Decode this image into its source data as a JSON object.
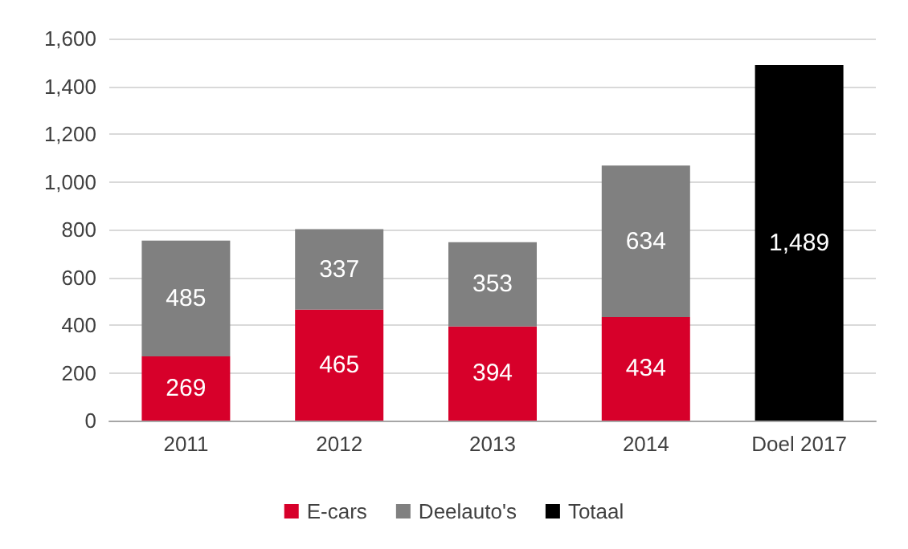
{
  "chart_data": {
    "type": "bar",
    "stacked": true,
    "categories": [
      "2011",
      "2012",
      "2013",
      "2014",
      "Doel 2017"
    ],
    "series": [
      {
        "name": "E-cars",
        "color": "#d7002a",
        "values": [
          269,
          465,
          394,
          434,
          null
        ],
        "value_labels": [
          "269",
          "465",
          "394",
          "434",
          null
        ]
      },
      {
        "name": "Deelauto's",
        "color": "#808080",
        "values": [
          485,
          337,
          353,
          634,
          null
        ],
        "value_labels": [
          "485",
          "337",
          "353",
          "634",
          null
        ]
      },
      {
        "name": "Totaal",
        "color": "#000000",
        "values": [
          null,
          null,
          null,
          null,
          1489
        ],
        "value_labels": [
          null,
          null,
          null,
          null,
          "1,489"
        ]
      }
    ],
    "ylim": [
      0,
      1600
    ],
    "yticks": [
      {
        "value": 0,
        "label": "0"
      },
      {
        "value": 200,
        "label": "200"
      },
      {
        "value": 400,
        "label": "400"
      },
      {
        "value": 600,
        "label": "600"
      },
      {
        "value": 800,
        "label": "800"
      },
      {
        "value": 1000,
        "label": "1,000"
      },
      {
        "value": 1200,
        "label": "1,200"
      },
      {
        "value": 1400,
        "label": "1,400"
      },
      {
        "value": 1600,
        "label": "1,600"
      }
    ],
    "grid": "y",
    "legend": "bottom"
  }
}
